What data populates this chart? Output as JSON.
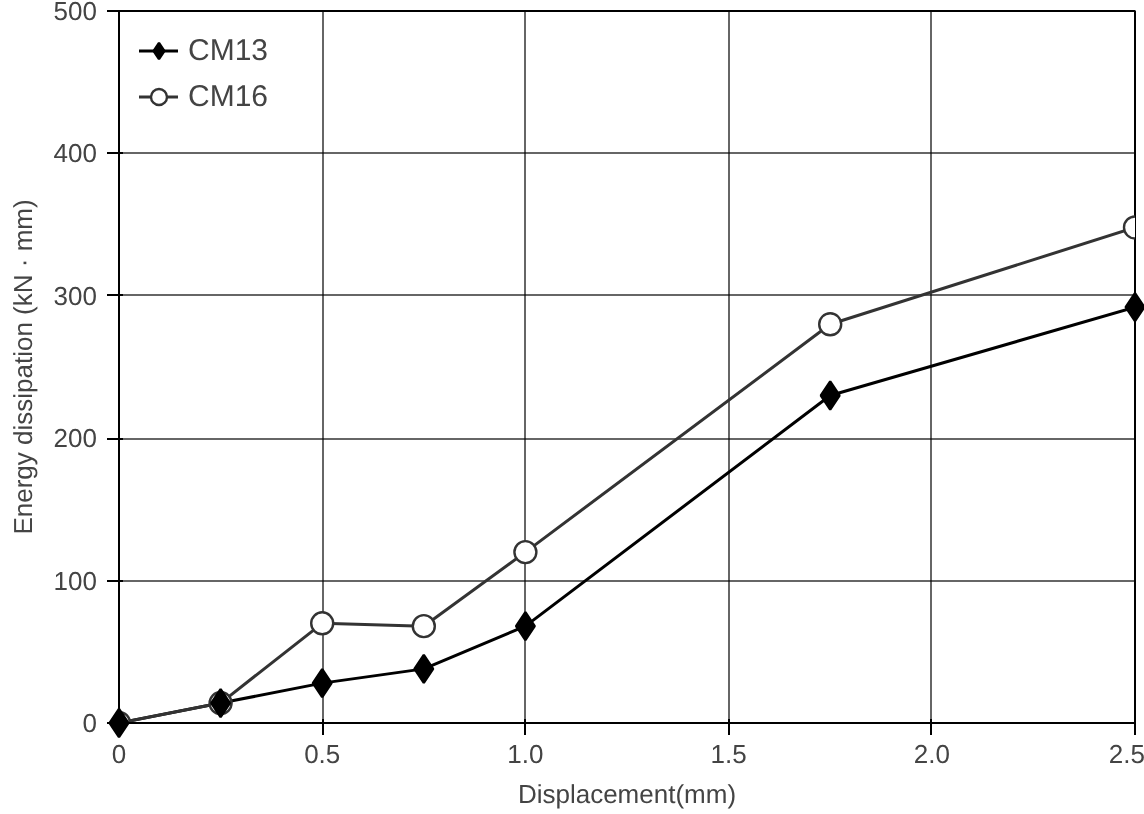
{
  "chart_data": {
    "type": "line",
    "xlabel": "Displacement(mm)",
    "ylabel": "Energy dissipation (kN · mm)",
    "x": [
      0,
      0.25,
      0.5,
      0.75,
      1.0,
      1.75,
      2.5
    ],
    "series": [
      {
        "name": "CM13",
        "color": "#000000",
        "marker": "diamond",
        "values": [
          0,
          14,
          28,
          38,
          68,
          230,
          292
        ]
      },
      {
        "name": "CM16",
        "color": "#333333",
        "marker": "circle",
        "values": [
          0,
          14,
          70,
          68,
          120,
          280,
          348
        ]
      }
    ],
    "xlim": [
      0,
      2.5
    ],
    "ylim": [
      0,
      500
    ],
    "xticks": [
      0,
      {
        "value": 0.5,
        "label": "0.5"
      },
      {
        "value": 1.0,
        "label": "1.0"
      },
      {
        "value": 1.5,
        "label": "1.5"
      },
      {
        "value": 2.0,
        "label": "2.0"
      },
      {
        "value": 2.5,
        "label": "2.5"
      }
    ],
    "yticks": [
      0,
      100,
      200,
      300,
      400,
      500
    ],
    "grid": true,
    "legend": "top left",
    "line_style": "solid"
  }
}
